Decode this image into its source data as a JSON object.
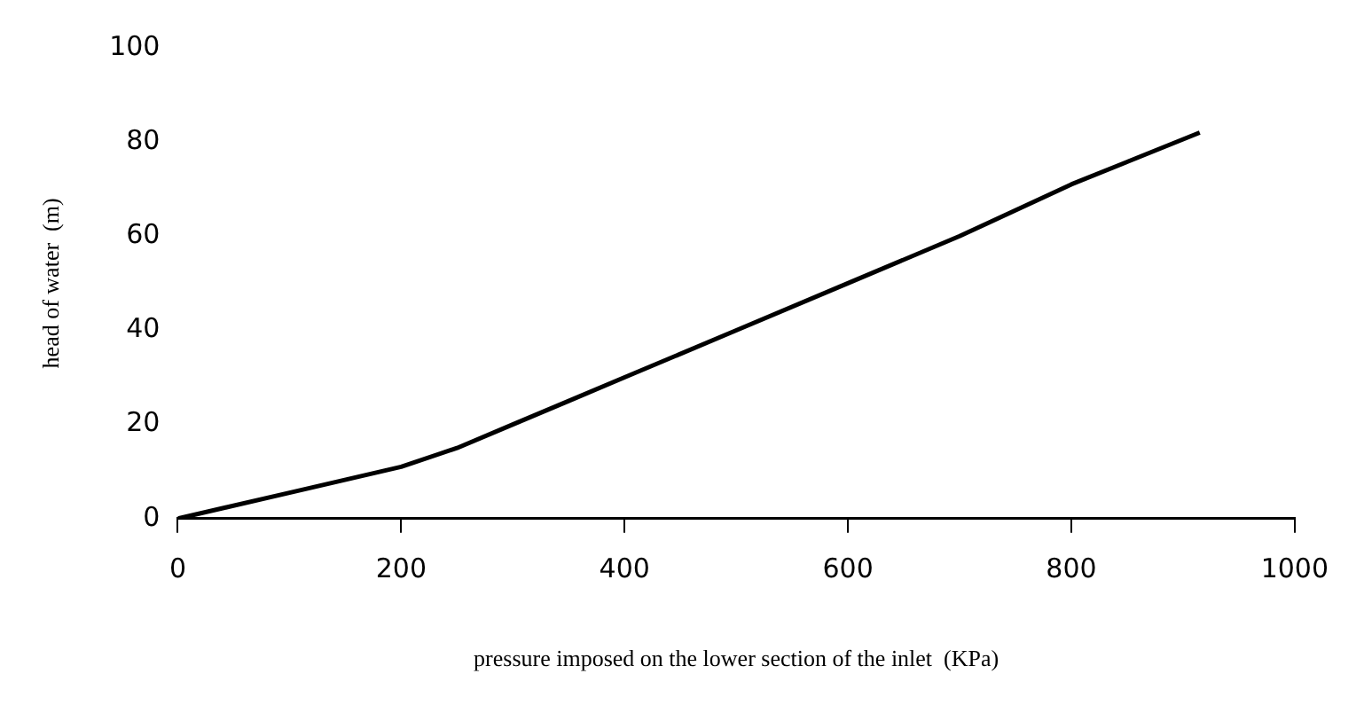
{
  "chart_data": {
    "type": "line",
    "xlabel": "pressure imposed on the lower section of the inlet  (KPa)",
    "ylabel": "head of water  (m)",
    "x": [
      0,
      100,
      200,
      250,
      300,
      350,
      400,
      500,
      600,
      700,
      800,
      915
    ],
    "series": [
      {
        "color": "#000000",
        "values": [
          0,
          5.5,
          11,
          15,
          20,
          25,
          30,
          40,
          50,
          60,
          71,
          82
        ]
      }
    ],
    "xlim": [
      0,
      1000
    ],
    "xticks": [
      0,
      200,
      400,
      600,
      800,
      1000
    ],
    "ylim": [
      0,
      100
    ],
    "yticks": [
      0,
      20,
      40,
      60,
      80,
      100
    ],
    "grid": false,
    "legend": false,
    "marker": "none",
    "line_style": "solid"
  }
}
